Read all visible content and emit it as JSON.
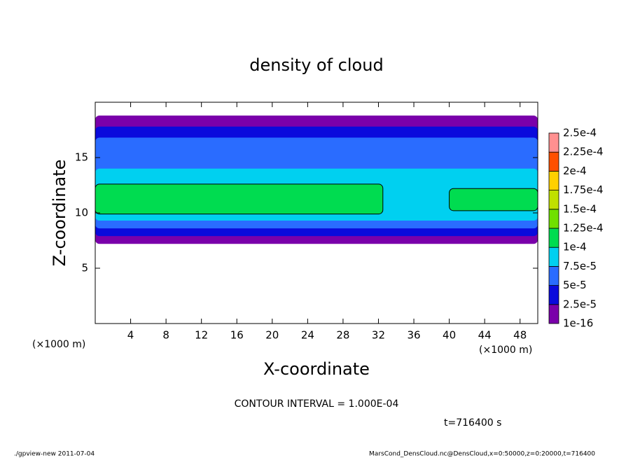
{
  "chart_data": {
    "type": "contour",
    "title": "density of cloud",
    "x_label": "X-coordinate",
    "y_label": "Z-coordinate",
    "x_unit": "(×1000 m)",
    "x_unit_right": "(×1000 m)",
    "contour_note": "CONTOUR INTERVAL = 1.000E-04",
    "time_note": "t=716400 s",
    "footer_left": "./gpview-new  2011-07-04",
    "footer_right": "MarsCond_DensCloud.nc@DensCloud,x=0:50000,z=0:20000,t=716400",
    "xlim": [
      0,
      50
    ],
    "ylim": [
      0,
      20
    ],
    "xticks": [
      4,
      8,
      12,
      16,
      20,
      24,
      28,
      32,
      36,
      40,
      44,
      48
    ],
    "yticks": [
      5,
      10,
      15
    ],
    "colorbar": {
      "levels": [
        {
          "value": 1e-16,
          "label": "1e-16"
        },
        {
          "value": 2.5e-05,
          "label": "2.5e-5"
        },
        {
          "value": 5e-05,
          "label": "5e-5"
        },
        {
          "value": 7.5e-05,
          "label": "7.5e-5"
        },
        {
          "value": 0.0001,
          "label": "1e-4"
        },
        {
          "value": 0.000125,
          "label": "1.25e-4"
        },
        {
          "value": 0.00015,
          "label": "1.5e-4"
        },
        {
          "value": 0.000175,
          "label": "1.75e-4"
        },
        {
          "value": 0.0002,
          "label": "2e-4"
        },
        {
          "value": 0.000225,
          "label": "2.25e-4"
        },
        {
          "value": 0.00025,
          "label": "2.5e-4"
        }
      ],
      "colors": [
        "#7a00aa",
        "#0a0adc",
        "#2a6cff",
        "#00d0f0",
        "#00dc50",
        "#70e000",
        "#c0e000",
        "#ffd000",
        "#ff5000",
        "#ff9090"
      ]
    },
    "bands": [
      {
        "value": 1e-16,
        "x": [
          0,
          50
        ],
        "z": [
          7.2,
          18.8
        ]
      },
      {
        "value": 2.5e-05,
        "x": [
          0,
          50
        ],
        "z": [
          7.9,
          17.8
        ]
      },
      {
        "value": 5e-05,
        "x": [
          0,
          50
        ],
        "z": [
          8.6,
          16.8
        ]
      },
      {
        "value": 7.5e-05,
        "x": [
          0,
          50
        ],
        "z": [
          9.3,
          14.0
        ]
      },
      {
        "value": 0.0001,
        "x": [
          0,
          32.5
        ],
        "z": [
          9.9,
          12.6
        ]
      },
      {
        "value": 0.0001,
        "x": [
          40,
          50
        ],
        "z": [
          10.2,
          12.2
        ]
      }
    ]
  }
}
